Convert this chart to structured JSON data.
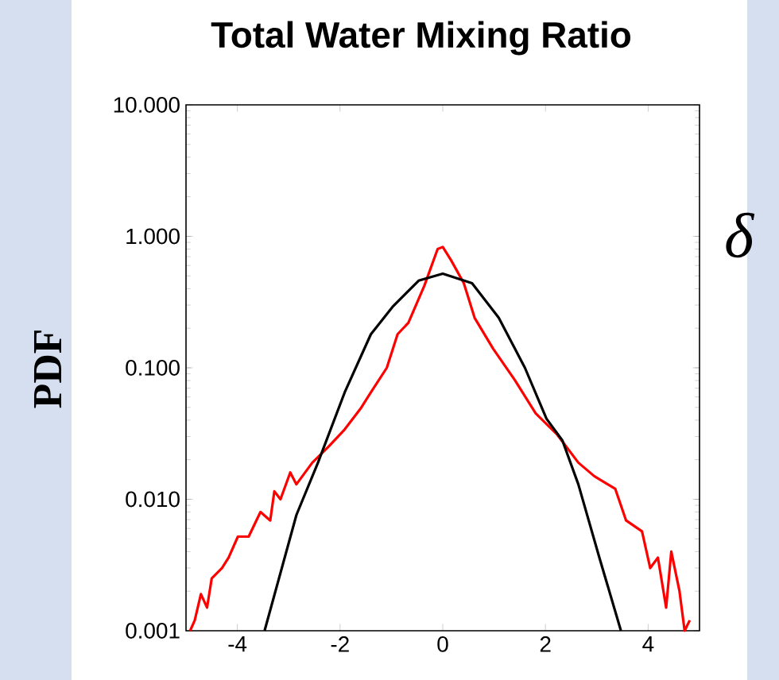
{
  "chart_data": {
    "type": "line",
    "title": "Total Water Mixing Ratio",
    "ylabel": "PDF",
    "annotations": [
      "δ"
    ],
    "log": "y",
    "xlim": [
      -5,
      5
    ],
    "ylim": [
      0.001,
      10
    ],
    "xticks": [
      -4,
      -2,
      0,
      2,
      4
    ],
    "yticks": [
      {
        "value": 0.001,
        "label": "0.001"
      },
      {
        "value": 0.01,
        "label": "0.010"
      },
      {
        "value": 0.1,
        "label": "0.100"
      },
      {
        "value": 1,
        "label": "1.000"
      },
      {
        "value": 10,
        "label": "10.000"
      }
    ],
    "grid": false,
    "marker": "none",
    "line_style": "solid",
    "series": [
      {
        "color": "#ff0000",
        "x": [
          -4.92,
          -4.83,
          -4.71,
          -4.59,
          -4.5,
          -4.3,
          -4.17,
          -3.99,
          -3.78,
          -3.55,
          -3.36,
          -3.28,
          -3.16,
          -2.97,
          -2.85,
          -2.54,
          -2.23,
          -1.91,
          -1.6,
          -1.4,
          -1.09,
          -0.88,
          -0.67,
          -0.36,
          -0.1,
          0,
          0.16,
          0.41,
          0.62,
          0.98,
          1.4,
          1.81,
          2.23,
          2.64,
          2.95,
          3.36,
          3.57,
          3.88,
          4.04,
          4.19,
          4.35,
          4.45,
          4.61,
          4.71,
          4.81
        ],
        "values": [
          0.001,
          0.0012,
          0.0019,
          0.0015,
          0.0025,
          0.003,
          0.0036,
          0.0052,
          0.0052,
          0.008,
          0.0069,
          0.0115,
          0.01,
          0.016,
          0.013,
          0.019,
          0.025,
          0.034,
          0.049,
          0.065,
          0.1,
          0.18,
          0.22,
          0.42,
          0.8,
          0.83,
          0.66,
          0.44,
          0.24,
          0.14,
          0.081,
          0.045,
          0.031,
          0.019,
          0.015,
          0.012,
          0.0069,
          0.0057,
          0.003,
          0.0036,
          0.0015,
          0.004,
          0.002,
          0.001,
          0.0012
        ]
      },
      {
        "color": "#000000",
        "x": [
          -3.47,
          -2.85,
          -2.43,
          -1.91,
          -1.4,
          -0.98,
          -0.47,
          0,
          0.57,
          1.09,
          1.6,
          2.02,
          2.33,
          2.64,
          3.05,
          3.47
        ],
        "values": [
          0.001,
          0.0076,
          0.019,
          0.065,
          0.18,
          0.29,
          0.46,
          0.52,
          0.44,
          0.24,
          0.1,
          0.041,
          0.028,
          0.013,
          0.0036,
          0.001
        ]
      }
    ]
  }
}
